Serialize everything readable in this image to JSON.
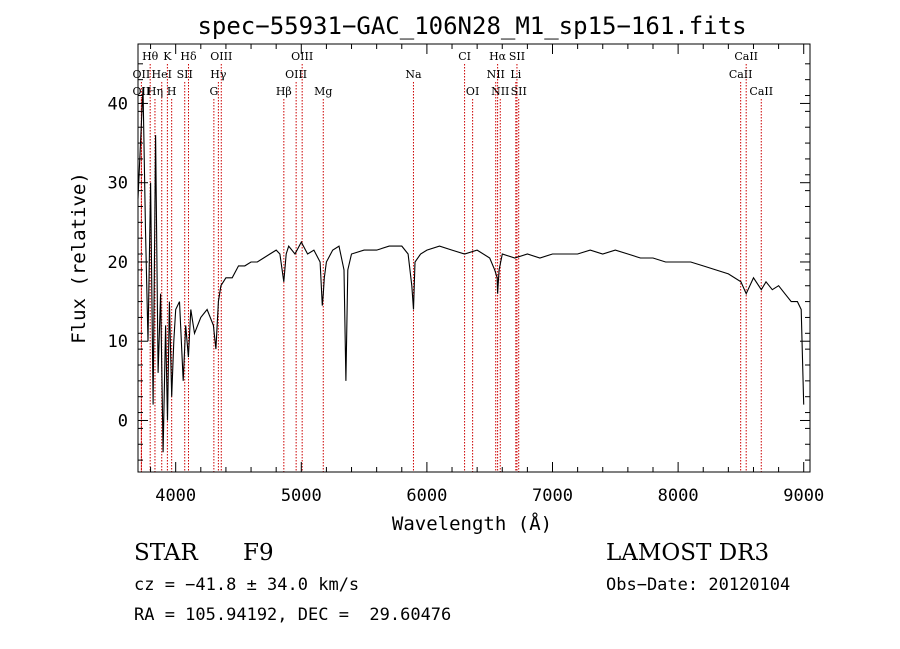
{
  "chart_data": {
    "type": "line",
    "title": "spec−55931−GAC_106N28_M1_sp15−161.fits",
    "xlabel": "Wavelength (Å)",
    "ylabel": "Flux (relative)",
    "xlim": [
      3700,
      9050
    ],
    "ylim": [
      -6.5,
      47.5
    ],
    "xticks": [
      4000,
      5000,
      6000,
      7000,
      8000,
      9000
    ],
    "yticks": [
      0,
      10,
      20,
      30,
      40
    ],
    "series": [
      {
        "name": "flux",
        "x": [
          3700,
          3720,
          3740,
          3760,
          3780,
          3800,
          3820,
          3840,
          3860,
          3880,
          3900,
          3920,
          3935,
          3950,
          3968,
          3985,
          4000,
          4030,
          4060,
          4080,
          4101,
          4120,
          4150,
          4200,
          4250,
          4300,
          4320,
          4340,
          4360,
          4400,
          4450,
          4500,
          4550,
          4600,
          4650,
          4700,
          4750,
          4800,
          4830,
          4861,
          4880,
          4900,
          4950,
          5000,
          5050,
          5100,
          5150,
          5167,
          5175,
          5183,
          5200,
          5250,
          5300,
          5340,
          5355,
          5370,
          5400,
          5500,
          5600,
          5700,
          5800,
          5850,
          5880,
          5893,
          5905,
          5950,
          6000,
          6100,
          6200,
          6300,
          6400,
          6500,
          6540,
          6560,
          6563,
          6575,
          6600,
          6700,
          6800,
          6900,
          7000,
          7100,
          7200,
          7300,
          7400,
          7500,
          7600,
          7700,
          7800,
          7900,
          8000,
          8100,
          8200,
          8300,
          8400,
          8500,
          8542,
          8600,
          8662,
          8700,
          8750,
          8800,
          8850,
          8900,
          8950,
          8980,
          9000
        ],
        "values": [
          28,
          35,
          42,
          24,
          10,
          30,
          2,
          36,
          6,
          16,
          -4,
          12,
          0,
          15,
          3,
          10,
          14,
          15,
          5,
          12,
          8,
          14,
          11,
          13,
          14,
          12,
          9,
          15,
          17,
          18,
          18,
          19.5,
          19.5,
          20,
          20,
          20.5,
          21,
          21.5,
          21,
          17.5,
          21,
          22,
          21,
          22.5,
          21,
          21.5,
          20,
          14.5,
          16,
          18,
          20,
          21.5,
          22,
          19,
          5,
          19,
          21,
          21.5,
          21.5,
          22,
          22,
          21,
          17,
          14,
          20,
          21,
          21.5,
          22,
          21.5,
          21,
          21.5,
          20.5,
          19,
          18,
          16,
          19,
          21,
          20.5,
          21,
          20.5,
          21,
          21,
          21,
          21.5,
          21,
          21.5,
          21,
          20.5,
          20.5,
          20,
          20,
          20,
          19.5,
          19,
          18.5,
          17.5,
          16,
          18,
          16.5,
          17.5,
          16.5,
          17,
          16,
          15,
          15,
          14,
          2
        ]
      }
    ],
    "spectral_lines": [
      {
        "label": "Hθ",
        "wavelength": 3797,
        "row": 1
      },
      {
        "label": "K",
        "wavelength": 3934,
        "row": 1
      },
      {
        "label": "Hδ",
        "wavelength": 4102,
        "row": 1
      },
      {
        "label": "OIII",
        "wavelength": 4363,
        "row": 1
      },
      {
        "label": "OIII",
        "wavelength": 5007,
        "row": 1
      },
      {
        "label": "CI",
        "wavelength": 6300,
        "row": 1
      },
      {
        "label": "Hα",
        "wavelength": 6563,
        "row": 1
      },
      {
        "label": "SII",
        "wavelength": 6717,
        "row": 1
      },
      {
        "label": "CaII",
        "wavelength": 8542,
        "row": 1
      },
      {
        "label": "OII",
        "wavelength": 3727,
        "row": 2
      },
      {
        "label": "HeI",
        "wavelength": 3889,
        "row": 2
      },
      {
        "label": "SII",
        "wavelength": 4072,
        "row": 2
      },
      {
        "label": "Hγ",
        "wavelength": 4340,
        "row": 2
      },
      {
        "label": "OIII",
        "wavelength": 4959,
        "row": 2
      },
      {
        "label": "Na",
        "wavelength": 5893,
        "row": 2
      },
      {
        "label": "NII",
        "wavelength": 6548,
        "row": 2
      },
      {
        "label": "Li",
        "wavelength": 6708,
        "row": 2
      },
      {
        "label": "CaII",
        "wavelength": 8498,
        "row": 2
      },
      {
        "label": "OII",
        "wavelength": 3727,
        "row": 3
      },
      {
        "label": "Hη",
        "wavelength": 3835,
        "row": 3
      },
      {
        "label": "H",
        "wavelength": 3968,
        "row": 3
      },
      {
        "label": "G",
        "wavelength": 4304,
        "row": 3
      },
      {
        "label": "Hβ",
        "wavelength": 4861,
        "row": 3
      },
      {
        "label": "Mg",
        "wavelength": 5175,
        "row": 3
      },
      {
        "label": "OI",
        "wavelength": 6364,
        "row": 3
      },
      {
        "label": "NII",
        "wavelength": 6584,
        "row": 3
      },
      {
        "label": "SII",
        "wavelength": 6731,
        "row": 3
      },
      {
        "label": "CaII",
        "wavelength": 8662,
        "row": 3
      }
    ],
    "line_color": "#cc0000"
  },
  "info": {
    "class_label": "STAR",
    "subclass": "F9",
    "survey": "LAMOST DR3",
    "cz": "cz = −41.8 ± 34.0 km/s",
    "obs_date": "Obs−Date: 20120104",
    "coords": "RA = 105.94192, DEC =  29.60476"
  }
}
